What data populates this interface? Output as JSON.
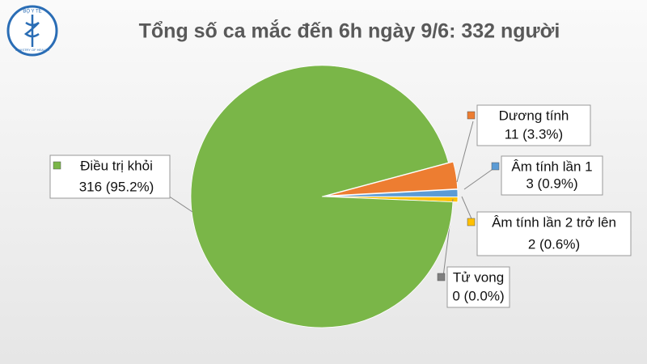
{
  "logo": {
    "top": "BỘ Y TẾ",
    "bottom": "MINISTRY OF HEALTH"
  },
  "chart_data": {
    "type": "pie",
    "title": "Tổng số ca mắc đến 6h ngày 9/6: 332 người",
    "categories": [
      "Dương tính",
      "Âm tính lần 1",
      "Âm tính lần 2 trở lên",
      "Tử vong",
      "Điều trị khỏi"
    ],
    "values": [
      11,
      3,
      2,
      0,
      316
    ],
    "value_labels": [
      "11 (3.3%)",
      "3 (0.9%)",
      "2 (0.6%)",
      "0 (0.0%)",
      "316 (95.2%)"
    ],
    "colors": [
      "#ed7d31",
      "#5b9bd5",
      "#ffc000",
      "#7f7f7f",
      "#7ab648"
    ]
  }
}
